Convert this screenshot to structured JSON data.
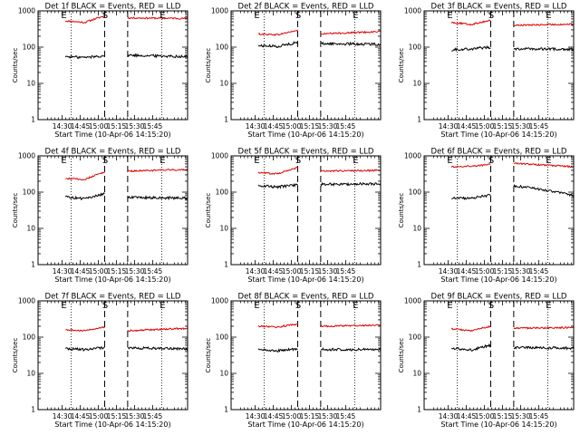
{
  "chart_data": [
    {
      "type": "line",
      "title": "Det 1f BLACK = Events, RED = LLD",
      "ylabel": "Counts/sec",
      "xlabel": "Start Time (10-Apr-06 14:15:20)",
      "x_ticks": [
        "14:30",
        "14:45",
        "15:00",
        "15:15",
        "15:30",
        "15:45"
      ],
      "y_ticks": [
        "1",
        "10",
        "100",
        "1000"
      ],
      "y_scale": "log",
      "ylim": [
        1,
        1000
      ],
      "markers": [
        "E",
        "S",
        "E"
      ],
      "series": [
        {
          "color": "#e00000",
          "values": [
            530,
            480,
            720,
            640,
            620
          ]
        },
        {
          "color": "#000000",
          "values": [
            55,
            52,
            58,
            60,
            55
          ]
        }
      ]
    },
    {
      "type": "line",
      "title": "Det 2f BLACK = Events, RED = LLD",
      "ylabel": "Counts/sec",
      "xlabel": "Start Time (10-Apr-06 14:15:20)",
      "x_ticks": [
        "14:30",
        "14:45",
        "15:00",
        "15:15",
        "15:30",
        "15:45"
      ],
      "y_ticks": [
        "1",
        "10",
        "100",
        "1000"
      ],
      "y_scale": "log",
      "ylim": [
        1,
        1000
      ],
      "markers": [
        "E",
        "S",
        "E"
      ],
      "series": [
        {
          "color": "#e00000",
          "values": [
            230,
            220,
            290,
            230,
            270
          ]
        },
        {
          "color": "#000000",
          "values": [
            110,
            105,
            135,
            125,
            120
          ]
        }
      ]
    },
    {
      "type": "line",
      "title": "Det 3f BLACK = Events, RED = LLD",
      "ylabel": "Counts/sec",
      "xlabel": "Start Time (10-Apr-06 14:15:20)",
      "x_ticks": [
        "14:30",
        "14:45",
        "15:00",
        "15:15",
        "15:30",
        "15:45"
      ],
      "y_ticks": [
        "1",
        "10",
        "100",
        "1000"
      ],
      "y_scale": "log",
      "ylim": [
        1,
        1000
      ],
      "markers": [
        "E",
        "S",
        "E"
      ],
      "series": [
        {
          "color": "#e00000",
          "values": [
            480,
            420,
            550,
            400,
            430
          ]
        },
        {
          "color": "#000000",
          "values": [
            85,
            90,
            100,
            90,
            88
          ]
        }
      ]
    },
    {
      "type": "line",
      "title": "Det 4f BLACK = Events, RED = LLD",
      "ylabel": "Counts/sec",
      "xlabel": "Start Time (10-Apr-06 14:15:20)",
      "x_ticks": [
        "14:30",
        "14:45",
        "15:00",
        "15:15",
        "15:30",
        "15:45"
      ],
      "y_ticks": [
        "1",
        "10",
        "100",
        "1000"
      ],
      "y_scale": "log",
      "ylim": [
        1,
        1000
      ],
      "markers": [
        "E",
        "S",
        "E"
      ],
      "series": [
        {
          "color": "#e00000",
          "values": [
            240,
            220,
            360,
            380,
            420
          ]
        },
        {
          "color": "#000000",
          "values": [
            75,
            65,
            90,
            72,
            68
          ]
        }
      ]
    },
    {
      "type": "line",
      "title": "Det 5f BLACK = Events, RED = LLD",
      "ylabel": "Counts/sec",
      "xlabel": "Start Time (10-Apr-06 14:15:20)",
      "x_ticks": [
        "14:30",
        "14:45",
        "15:00",
        "15:15",
        "15:30",
        "15:45"
      ],
      "y_ticks": [
        "1",
        "10",
        "100",
        "1000"
      ],
      "y_scale": "log",
      "ylim": [
        1,
        1000
      ],
      "markers": [
        "E",
        "S",
        "E"
      ],
      "series": [
        {
          "color": "#e00000",
          "values": [
            350,
            320,
            480,
            380,
            400
          ]
        },
        {
          "color": "#000000",
          "values": [
            150,
            140,
            160,
            165,
            170
          ]
        }
      ]
    },
    {
      "type": "line",
      "title": "Det 6f BLACK = Events, RED = LLD",
      "ylabel": "Counts/sec",
      "xlabel": "Start Time (10-Apr-06 14:15:20)",
      "x_ticks": [
        "14:30",
        "14:45",
        "15:00",
        "15:15",
        "15:30",
        "15:45"
      ],
      "y_ticks": [
        "1",
        "10",
        "100",
        "1000"
      ],
      "y_scale": "log",
      "ylim": [
        1,
        1000
      ],
      "markers": [
        "E",
        "S",
        "E"
      ],
      "series": [
        {
          "color": "#e00000",
          "values": [
            500,
            520,
            580,
            620,
            500
          ]
        },
        {
          "color": "#000000",
          "values": [
            70,
            68,
            82,
            150,
            80
          ]
        }
      ]
    },
    {
      "type": "line",
      "title": "Det 7f BLACK = Events, RED = LLD",
      "ylabel": "Counts/sec",
      "xlabel": "Start Time (10-Apr-06 14:15:20)",
      "x_ticks": [
        "14:30",
        "14:45",
        "15:00",
        "15:15",
        "15:30",
        "15:45"
      ],
      "y_ticks": [
        "1",
        "10",
        "100",
        "1000"
      ],
      "y_scale": "log",
      "ylim": [
        1,
        1000
      ],
      "markers": [
        "E",
        "S",
        "E"
      ],
      "series": [
        {
          "color": "#e00000",
          "values": [
            160,
            150,
            190,
            150,
            175
          ]
        },
        {
          "color": "#000000",
          "values": [
            48,
            45,
            52,
            50,
            48
          ]
        }
      ]
    },
    {
      "type": "line",
      "title": "Det 8f BLACK = Events, RED = LLD",
      "ylabel": "Counts/sec",
      "xlabel": "Start Time (10-Apr-06 14:15:20)",
      "x_ticks": [
        "14:30",
        "14:45",
        "15:00",
        "15:15",
        "15:30",
        "15:45"
      ],
      "y_ticks": [
        "1",
        "10",
        "100",
        "1000"
      ],
      "y_scale": "log",
      "ylim": [
        1,
        1000
      ],
      "markers": [
        "E",
        "S",
        "E"
      ],
      "series": [
        {
          "color": "#e00000",
          "values": [
            200,
            190,
            230,
            200,
            215
          ]
        },
        {
          "color": "#000000",
          "values": [
            45,
            42,
            48,
            46,
            45
          ]
        }
      ]
    },
    {
      "type": "line",
      "title": "Det 9f BLACK = Events, RED = LLD",
      "ylabel": "Counts/sec",
      "xlabel": "Start Time (10-Apr-06 14:15:20)",
      "x_ticks": [
        "14:30",
        "14:45",
        "15:00",
        "15:15",
        "15:30",
        "15:45"
      ],
      "y_ticks": [
        "1",
        "10",
        "100",
        "1000"
      ],
      "y_scale": "log",
      "ylim": [
        1,
        1000
      ],
      "markers": [
        "E",
        "S",
        "E"
      ],
      "series": [
        {
          "color": "#e00000",
          "values": [
            170,
            150,
            200,
            175,
            185
          ]
        },
        {
          "color": "#000000",
          "values": [
            50,
            44,
            60,
            52,
            50
          ]
        }
      ]
    }
  ]
}
